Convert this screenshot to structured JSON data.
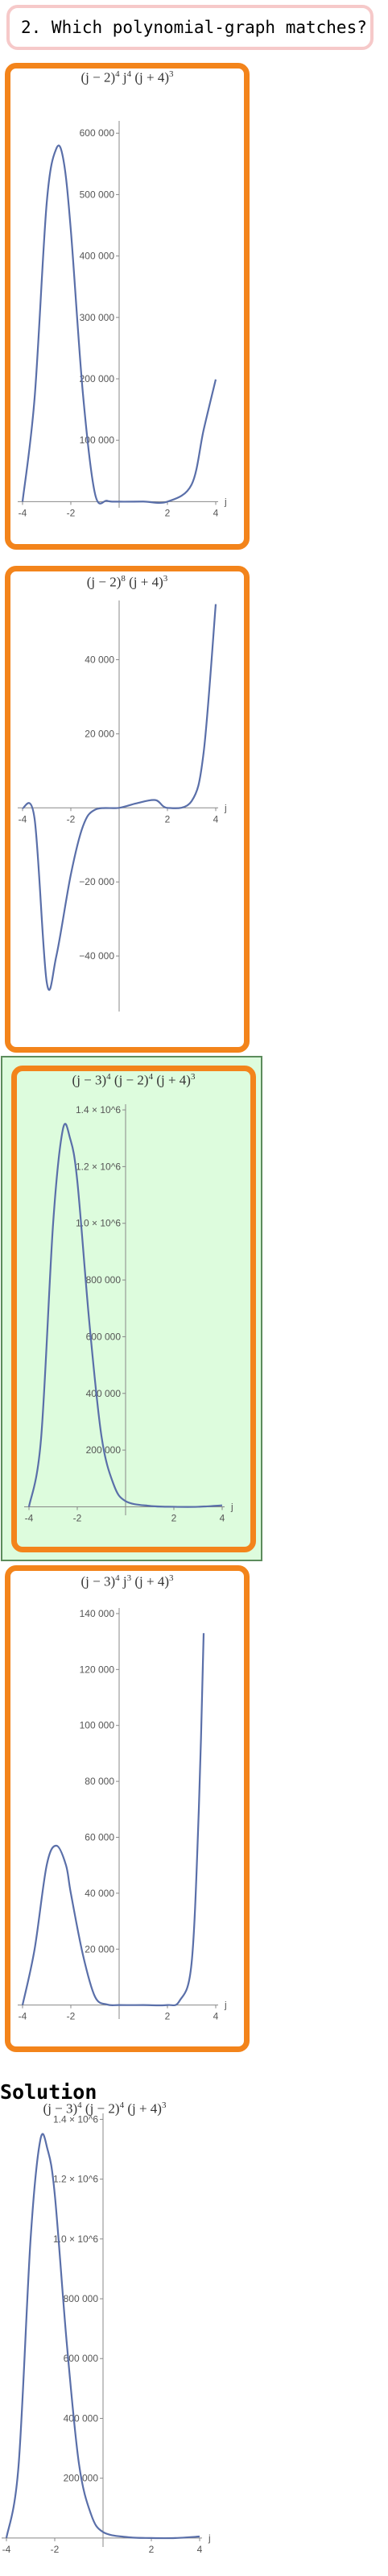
{
  "question": {
    "text": "2. Which polynomial-graph matches?"
  },
  "options": [
    {
      "title_html": "(j − 2)<sup>4</sup> j<sup>4</sup> (j + 4)<sup>3</sup>",
      "selected": false
    },
    {
      "title_html": "(j − 2)<sup>8</sup> (j + 4)<sup>3</sup>",
      "selected": false
    },
    {
      "title_html": "(j − 3)<sup>4</sup> (j − 2)<sup>4</sup> (j + 4)<sup>3</sup>",
      "selected": true
    },
    {
      "title_html": "(j − 3)<sup>4</sup> j<sup>3</sup> (j + 4)<sup>3</sup>",
      "selected": false
    }
  ],
  "solution": {
    "heading": "Solution",
    "title_html": "(j − 3)<sup>4</sup> (j − 2)<sup>4</sup> (j + 4)<sup>3</sup>"
  },
  "colors": {
    "card_border": "#f3841b",
    "curve": "#5a6fa9",
    "highlight_bg": "#ddfcdd",
    "question_border": "#f6c9c9"
  },
  "chart_data": [
    {
      "type": "line",
      "title": "(j − 2)^4 j^4 (j + 4)^3",
      "xlabel": "j",
      "xlim": [
        -4.2,
        4.1
      ],
      "ylim": [
        -10000,
        620000
      ],
      "x_ticks": [
        -4,
        -2,
        2,
        4
      ],
      "x_tick_labels": [
        "-4",
        "-2",
        "2",
        "4"
      ],
      "y_ticks": [
        100000,
        200000,
        300000,
        400000,
        500000,
        600000
      ],
      "y_tick_labels": [
        "100 000",
        "200 000",
        "300 000",
        "400 000",
        "500 000",
        "600 000"
      ],
      "series": [
        {
          "x": [
            -4,
            -3.5,
            -3,
            -2.6,
            -2.3,
            -2,
            -1.5,
            -1,
            -0.5,
            0,
            1,
            2,
            3,
            3.5,
            4
          ],
          "y": [
            0,
            169000,
            486000,
            575000,
            555000,
            442000,
            176000,
            13000,
            1400,
            0,
            125,
            0,
            27800,
            117000,
            199000
          ]
        }
      ]
    },
    {
      "type": "line",
      "title": "(j − 2)^8 (j + 4)^3",
      "xlabel": "j",
      "xlim": [
        -4.2,
        4.1
      ],
      "ylim": [
        -55000,
        56000
      ],
      "x_ticks": [
        -4,
        -2,
        2,
        4
      ],
      "x_tick_labels": [
        "-4",
        "-2",
        "2",
        "4"
      ],
      "y_ticks": [
        -40000,
        -20000,
        20000,
        40000
      ],
      "y_tick_labels": [
        "−40 000",
        "−20 000",
        "20 000",
        "40 000"
      ],
      "series": [
        {
          "x": [
            -4,
            -3.5,
            -3,
            -2.6,
            -2,
            -1.5,
            -1,
            0,
            0.7,
            1.5,
            2,
            3,
            3.5,
            4
          ],
          "y": [
            0,
            -3000,
            -47000,
            -40000,
            -18000,
            -5000,
            -500,
            0,
            1200,
            2100,
            0,
            1800,
            15000,
            55000
          ]
        }
      ]
    },
    {
      "type": "line",
      "title": "(j − 3)^4 (j − 2)^4 (j + 4)^3",
      "xlabel": "j",
      "xlim": [
        -4.2,
        4.1
      ],
      "ylim": [
        -30000,
        1420000
      ],
      "x_ticks": [
        -4,
        -2,
        2,
        4
      ],
      "x_tick_labels": [
        "-4",
        "-2",
        "2",
        "4"
      ],
      "y_ticks": [
        200000,
        400000,
        600000,
        800000,
        1000000,
        1200000,
        1400000
      ],
      "y_tick_labels": [
        "200 000",
        "400 000",
        "600 000",
        "800 000",
        "1.0 × 10^6",
        "1.2 × 10^6",
        "1.4 × 10^6"
      ],
      "series": [
        {
          "x": [
            -4,
            -3.5,
            -3,
            -2.6,
            -2.3,
            -2,
            -1.5,
            -1,
            -0.5,
            0,
            1,
            2,
            3,
            4
          ],
          "y": [
            0,
            240000,
            1000000,
            1330000,
            1300000,
            1150000,
            650000,
            250000,
            80000,
            20000,
            3000,
            0,
            0,
            5000
          ]
        }
      ]
    },
    {
      "type": "line",
      "title": "(j − 3)^4 j^3 (j + 4)^3",
      "xlabel": "j",
      "xlim": [
        -4.2,
        4.1
      ],
      "ylim": [
        -5000,
        142000
      ],
      "x_ticks": [
        -4,
        -2,
        2,
        4
      ],
      "x_tick_labels": [
        "-4",
        "-2",
        "2",
        "4"
      ],
      "y_ticks": [
        20000,
        40000,
        60000,
        80000,
        100000,
        120000,
        140000
      ],
      "y_tick_labels": [
        "20 000",
        "40 000",
        "60 000",
        "80 000",
        "100 000",
        "120 000",
        "140 000"
      ],
      "series": [
        {
          "x": [
            -4,
            -3.5,
            -3,
            -2.6,
            -2.2,
            -2,
            -1.5,
            -1,
            -0.5,
            0,
            1,
            2,
            2.5,
            3,
            3.3,
            3.5
          ],
          "y": [
            0,
            20000,
            50000,
            57000,
            50000,
            40000,
            18000,
            3000,
            200,
            0,
            0,
            0,
            1500,
            15000,
            70000,
            133000
          ]
        }
      ]
    },
    {
      "type": "line",
      "title": "(j − 3)^4 (j − 2)^4 (j + 4)^3",
      "xlabel": "j",
      "xlim": [
        -4.2,
        4.1
      ],
      "ylim": [
        -30000,
        1420000
      ],
      "x_ticks": [
        -4,
        -2,
        2,
        4
      ],
      "x_tick_labels": [
        "-4",
        "-2",
        "2",
        "4"
      ],
      "y_ticks": [
        200000,
        400000,
        600000,
        800000,
        1000000,
        1200000,
        1400000
      ],
      "y_tick_labels": [
        "200 000",
        "400 000",
        "600 000",
        "800 000",
        "1.0 × 10^6",
        "1.2 × 10^6",
        "1.4 × 10^6"
      ],
      "series": [
        {
          "x": [
            -4,
            -3.5,
            -3,
            -2.6,
            -2.3,
            -2,
            -1.5,
            -1,
            -0.5,
            0,
            1,
            2,
            3,
            4
          ],
          "y": [
            0,
            240000,
            1000000,
            1330000,
            1300000,
            1150000,
            650000,
            250000,
            80000,
            20000,
            3000,
            0,
            0,
            5000
          ]
        }
      ]
    }
  ]
}
